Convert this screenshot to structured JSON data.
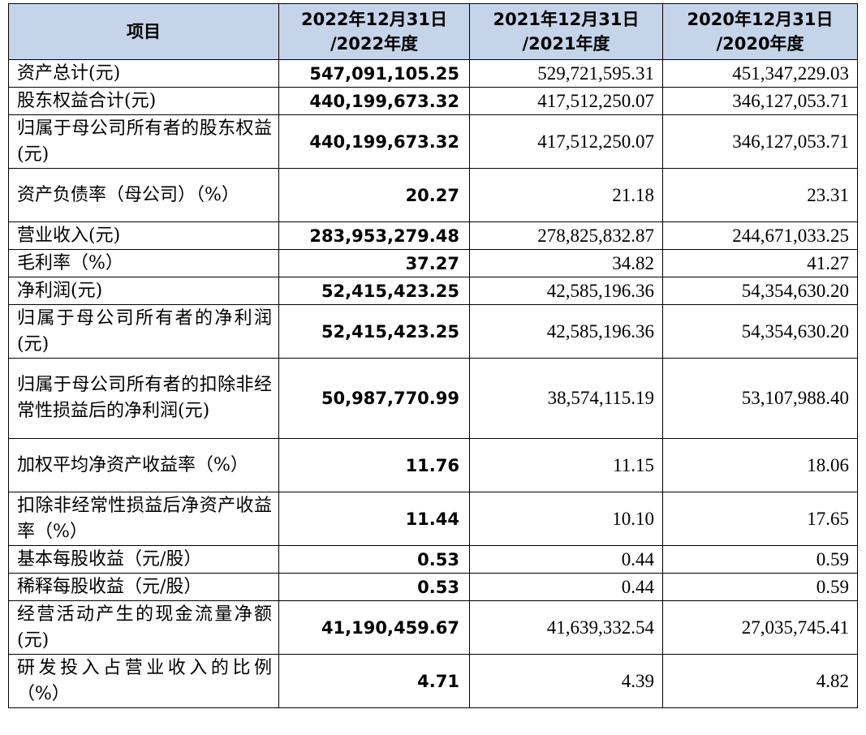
{
  "table": {
    "headers": {
      "item": "项目",
      "col_2022_line1": "2022年12月31日",
      "col_2022_line2": "/2022年度",
      "col_2021_line1": "2021年12月31日",
      "col_2021_line2": "/2021年度",
      "col_2020_line1": "2020年12月31日",
      "col_2020_line2": "/2020年度"
    },
    "rows": [
      {
        "label": "资产总计(元)",
        "v2022": "547,091,105.25",
        "v2021": "529,721,595.31",
        "v2020": "451,347,229.03"
      },
      {
        "label": "股东权益合计(元)",
        "v2022": "440,199,673.32",
        "v2021": "417,512,250.07",
        "v2020": "346,127,053.71"
      },
      {
        "label": "归属于母公司所有者的股东权益(元)",
        "v2022": "440,199,673.32",
        "v2021": "417,512,250.07",
        "v2020": "346,127,053.71"
      },
      {
        "label": "资产负债率（母公司）（%）",
        "v2022": "20.27",
        "v2021": "21.18",
        "v2020": "23.31"
      },
      {
        "label": "营业收入(元)",
        "v2022": "283,953,279.48",
        "v2021": "278,825,832.87",
        "v2020": "244,671,033.25"
      },
      {
        "label": "毛利率（%）",
        "v2022": "37.27",
        "v2021": "34.82",
        "v2020": "41.27"
      },
      {
        "label": "净利润(元)",
        "v2022": "52,415,423.25",
        "v2021": "42,585,196.36",
        "v2020": "54,354,630.20"
      },
      {
        "label": "归属于母公司所有者的净利润(元)",
        "v2022": "52,415,423.25",
        "v2021": "42,585,196.36",
        "v2020": "54,354,630.20"
      },
      {
        "label": "归属于母公司所有者的扣除非经常性损益后的净利润(元)",
        "v2022": "50,987,770.99",
        "v2021": "38,574,115.19",
        "v2020": "53,107,988.40"
      },
      {
        "label": "加权平均净资产收益率（%）",
        "v2022": "11.76",
        "v2021": "11.15",
        "v2020": "18.06"
      },
      {
        "label": "扣除非经常性损益后净资产收益率（%）",
        "v2022": "11.44",
        "v2021": "10.10",
        "v2020": "17.65"
      },
      {
        "label": "基本每股收益（元/股）",
        "v2022": "0.53",
        "v2021": "0.44",
        "v2020": "0.59"
      },
      {
        "label": "稀释每股收益（元/股）",
        "v2022": "0.53",
        "v2021": "0.44",
        "v2020": "0.59"
      },
      {
        "label": "经营活动产生的现金流量净额(元)",
        "v2022": "41,190,459.67",
        "v2021": "41,639,332.54",
        "v2020": "27,035,745.41"
      },
      {
        "label": "研发投入占营业收入的比例（%）",
        "v2022": "4.71",
        "v2021": "4.39",
        "v2020": "4.82"
      }
    ]
  }
}
